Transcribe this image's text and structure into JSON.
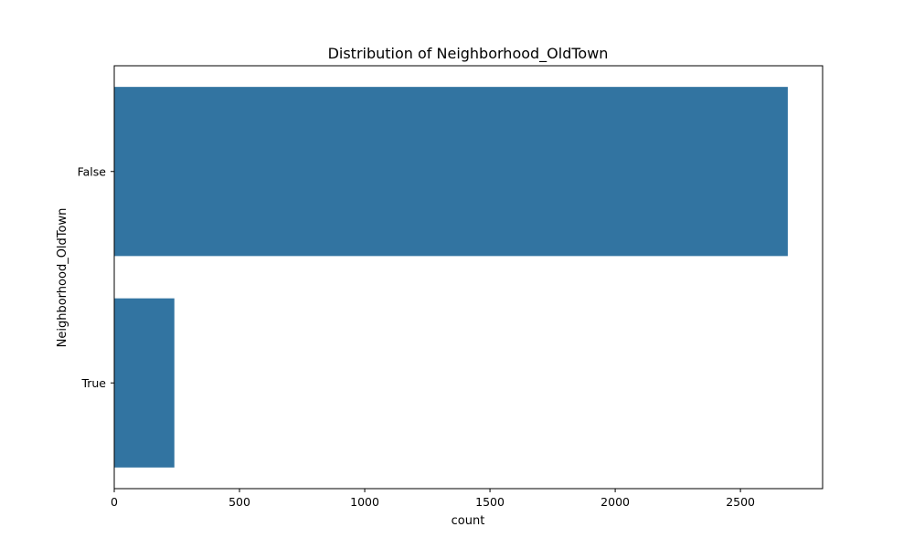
{
  "chart_data": {
    "type": "bar",
    "orientation": "horizontal",
    "title": "Distribution of Neighborhood_OldTown",
    "xlabel": "count",
    "ylabel": "Neighborhood_OldTown",
    "categories": [
      "False",
      "True"
    ],
    "values": [
      2689,
      240
    ],
    "xlim": [
      0,
      2828
    ],
    "xticks": [
      0,
      500,
      1000,
      1500,
      2000,
      2500
    ],
    "bar_color": "#3274a1",
    "grid": false,
    "legend": "none"
  }
}
